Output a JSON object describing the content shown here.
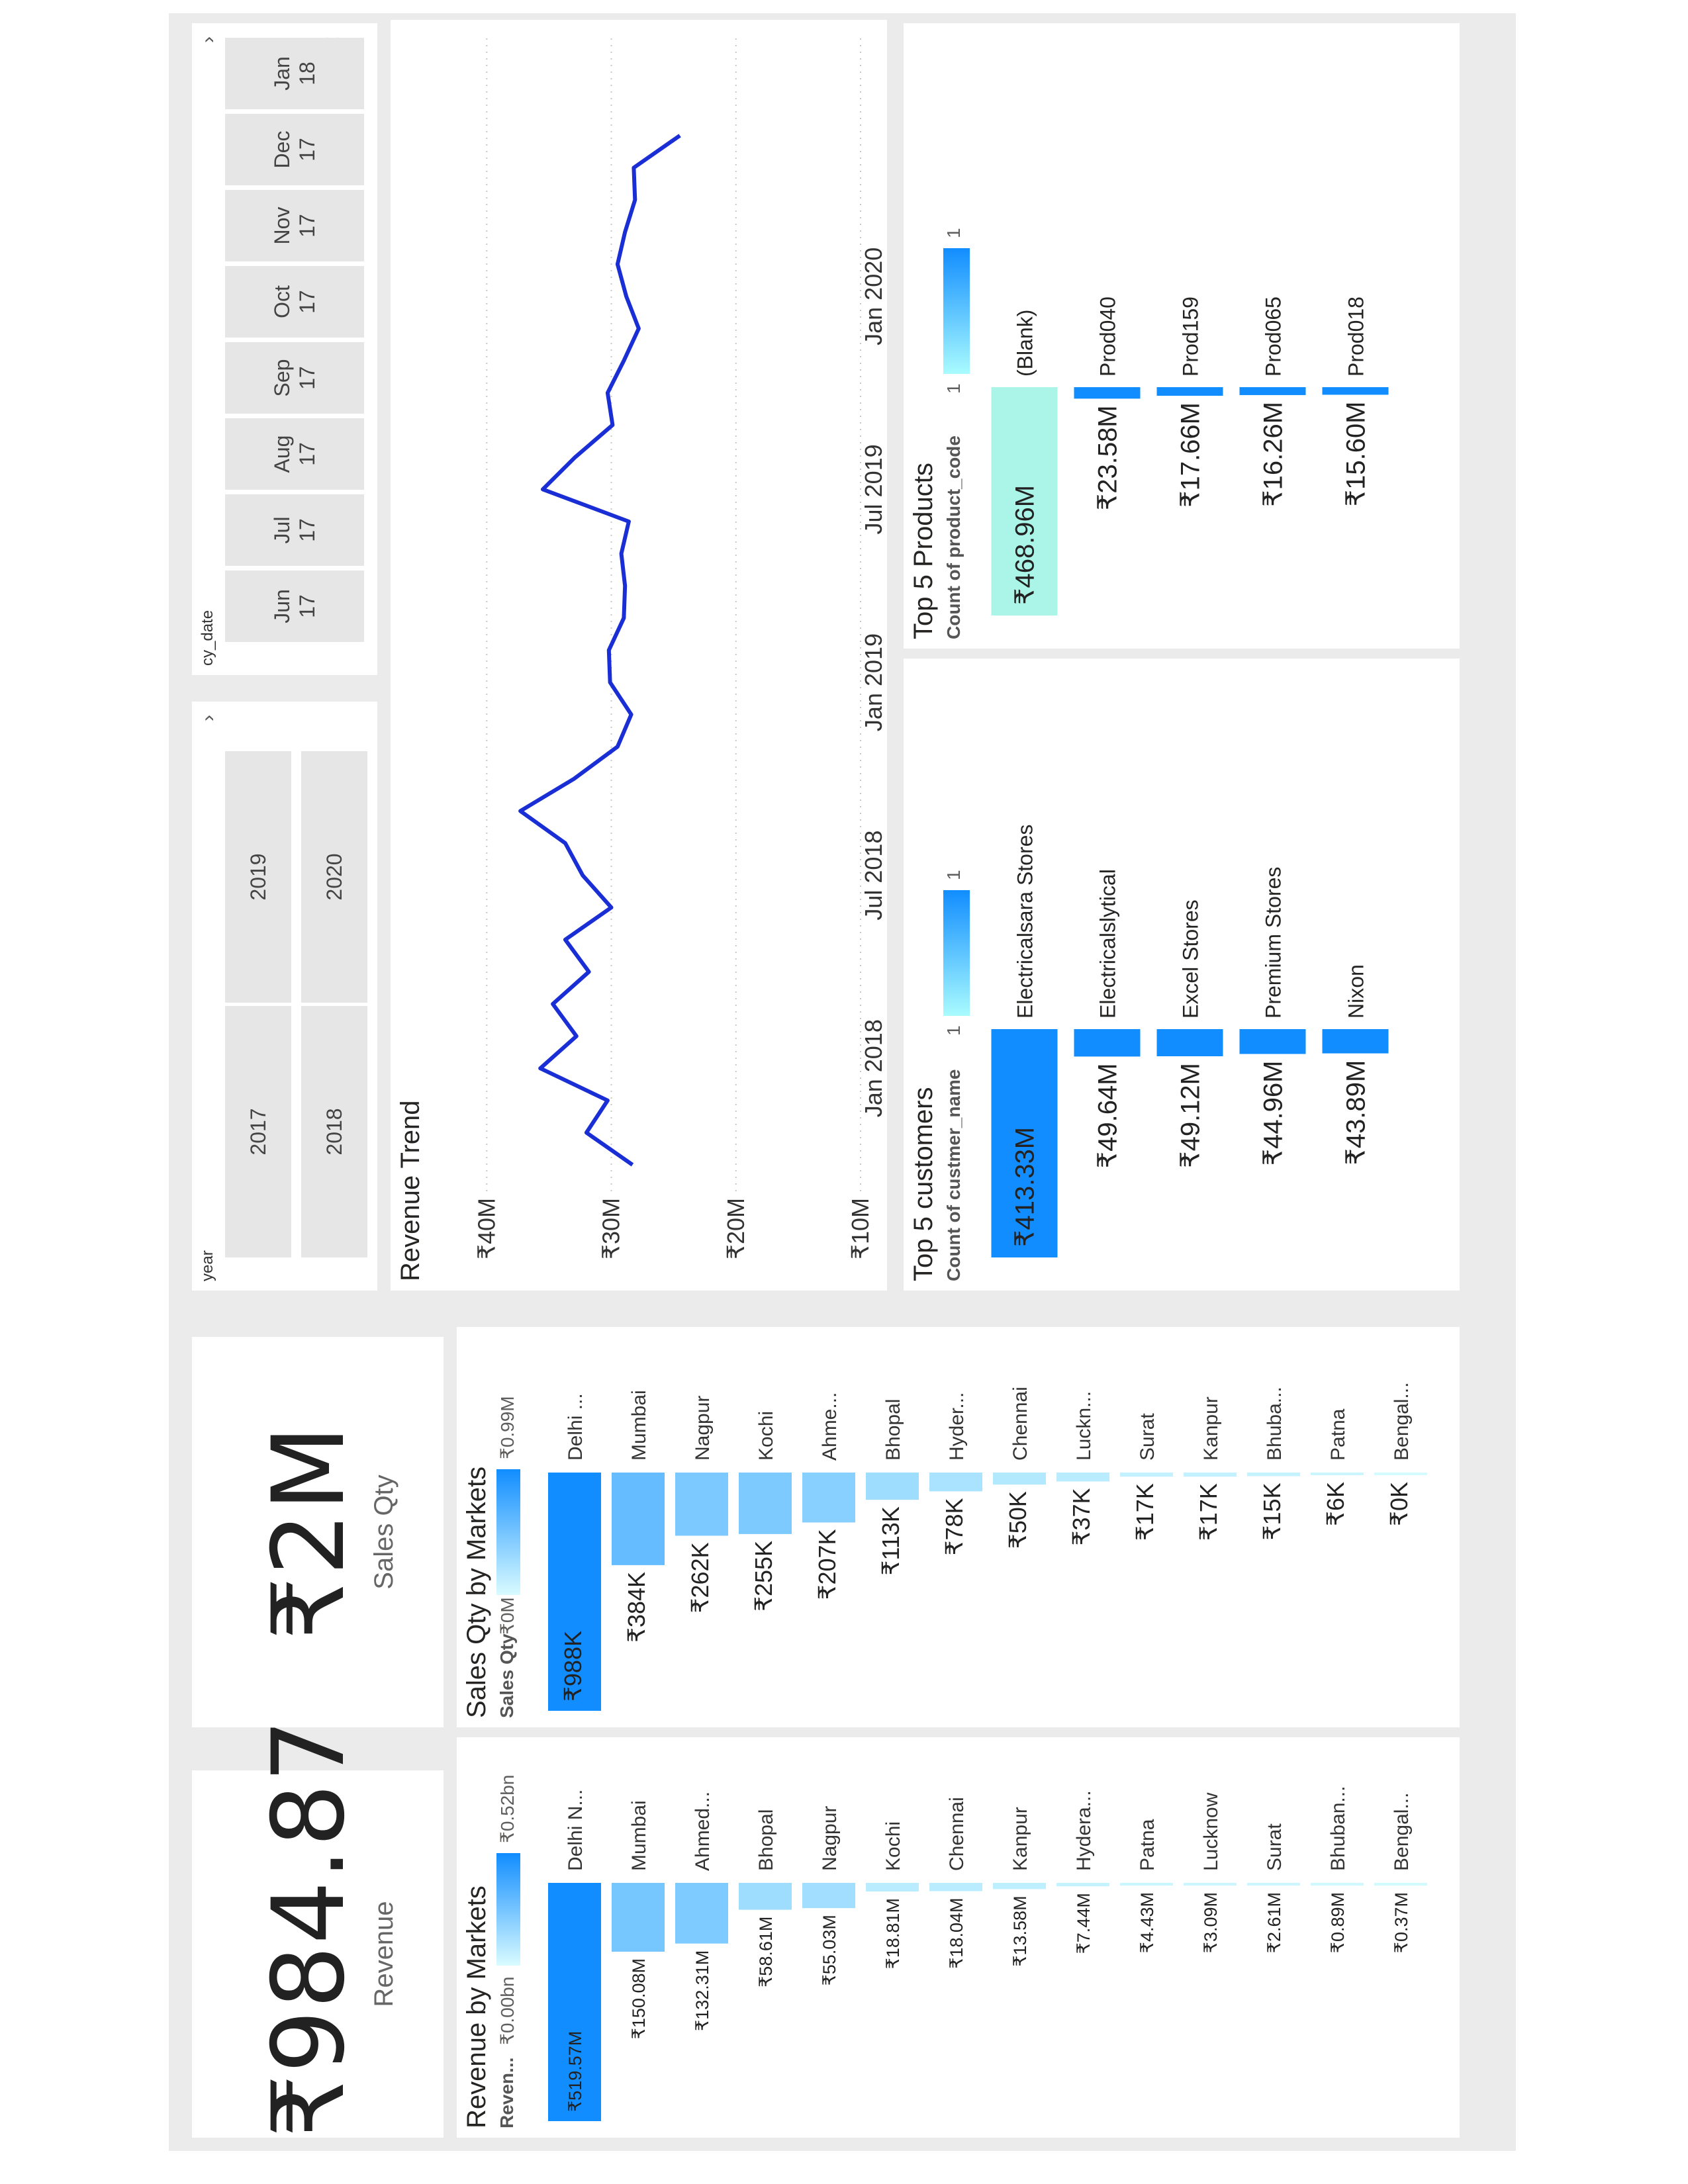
{
  "kpi_revenue": {
    "value": "₹984.87M",
    "label": "Revenue"
  },
  "kpi_sales_qty": {
    "value": "₹2M",
    "label": "Sales Qty"
  },
  "year_slicer": {
    "title": "year",
    "options": [
      "2017",
      "2019",
      "2018",
      "2020"
    ]
  },
  "date_slicer": {
    "title": "cy_date",
    "options": [
      "Jun\n17",
      "Jul\n17",
      "Aug\n17",
      "Sep\n17",
      "Oct\n17",
      "Nov\n17",
      "Dec\n17",
      "Jan\n18"
    ]
  },
  "colors": {
    "accent": "#118dff",
    "light": "#a9f1ff",
    "line": "#1a2ed6",
    "blank_bar": "#aaf5e8",
    "canvas": "#ebebeb"
  },
  "chart_data": [
    {
      "id": "revenue_by_markets",
      "type": "bar",
      "title": "Revenue by Markets",
      "legend_label": "Reven...",
      "legend_min": "₹0.00bn",
      "legend_max": "₹0.52bn",
      "categories": [
        "Delhi N...",
        "Mumbai",
        "Ahmed...",
        "Bhopal",
        "Nagpur",
        "Kochi",
        "Chennai",
        "Kanpur",
        "Hydera...",
        "Patna",
        "Lucknow",
        "Surat",
        "Bhuban...",
        "Bengal..."
      ],
      "values": [
        519.57,
        150.08,
        132.31,
        58.61,
        55.03,
        18.81,
        18.04,
        13.58,
        7.44,
        4.43,
        3.09,
        2.61,
        0.89,
        0.37
      ],
      "data_labels": [
        "₹519.57M",
        "₹150.08M",
        "₹132.31M",
        "₹58.61M",
        "₹55.03M",
        "₹18.81M",
        "₹18.04M",
        "₹13.58M",
        "₹7.44M",
        "₹4.43M",
        "₹3.09M",
        "₹2.61M",
        "₹0.89M",
        "₹0.37M"
      ],
      "ylim": [
        0,
        519.57
      ]
    },
    {
      "id": "sales_qty_by_markets",
      "type": "bar",
      "title": "Sales Qty by Markets",
      "legend_label": "Sales Qty",
      "legend_min": "₹0M",
      "legend_max": "₹0.99M",
      "categories": [
        "Delhi ...",
        "Mumbai",
        "Nagpur",
        "Kochi",
        "Ahme...",
        "Bhopal",
        "Hyder...",
        "Chennai",
        "Luckn...",
        "Surat",
        "Kanpur",
        "Bhuba...",
        "Patna",
        "Bengal..."
      ],
      "values": [
        988,
        384,
        262,
        255,
        207,
        113,
        78,
        50,
        37,
        17,
        17,
        15,
        6,
        0
      ],
      "data_labels": [
        "₹988K",
        "₹384K",
        "₹262K",
        "₹255K",
        "₹207K",
        "₹113K",
        "₹78K",
        "₹50K",
        "₹37K",
        "₹17K",
        "₹17K",
        "₹15K",
        "₹6K",
        "₹0K"
      ],
      "ylim": [
        0,
        988
      ]
    },
    {
      "id": "revenue_trend",
      "type": "line",
      "title": "Revenue Trend",
      "x_ticks": [
        "Jan 2018",
        "Jul 2018",
        "Jan 2019",
        "Jul 2019",
        "Jan 2020"
      ],
      "y_ticks": [
        "₹10M",
        "₹20M",
        "₹30M",
        "₹40M"
      ],
      "y_tick_values": [
        10,
        20,
        30,
        40
      ],
      "x_start": "2017-10",
      "x": [
        "2017-10",
        "2017-11",
        "2017-12",
        "2018-01",
        "2018-02",
        "2018-03",
        "2018-04",
        "2018-05",
        "2018-06",
        "2018-07",
        "2018-08",
        "2018-09",
        "2018-10",
        "2018-11",
        "2018-12",
        "2019-01",
        "2019-02",
        "2019-03",
        "2019-04",
        "2019-05",
        "2019-06",
        "2019-07",
        "2019-08",
        "2019-09",
        "2019-10",
        "2019-11",
        "2019-12",
        "2020-01",
        "2020-02",
        "2020-03",
        "2020-04",
        "2020-05",
        "2020-06"
      ],
      "values": [
        28.3,
        32.0,
        30.3,
        35.7,
        32.8,
        34.7,
        31.8,
        33.7,
        30.0,
        32.3,
        33.7,
        37.3,
        33.0,
        29.5,
        28.4,
        30.1,
        30.2,
        29.0,
        28.9,
        29.2,
        28.6,
        35.5,
        32.9,
        29.9,
        30.3,
        29.0,
        27.8,
        28.8,
        29.5,
        28.9,
        28.1,
        28.2,
        24.5
      ],
      "ylim": [
        10,
        44
      ]
    },
    {
      "id": "top5_customers",
      "type": "bar",
      "title": "Top 5 customers",
      "legend_label": "Count of custmer_name",
      "legend_min": "1",
      "legend_max": "1",
      "categories": [
        "Electricalsara Stores",
        "Electricalslytical",
        "Excel Stores",
        "Premium Stores",
        "Nixon"
      ],
      "values": [
        413.33,
        49.64,
        49.12,
        44.96,
        43.89
      ],
      "data_labels": [
        "₹413.33M",
        "₹49.64M",
        "₹49.12M",
        "₹44.96M",
        "₹43.89M"
      ],
      "ylim": [
        0,
        413.33
      ]
    },
    {
      "id": "top5_products",
      "type": "bar",
      "title": "Top 5 Products",
      "legend_label": "Count of product_code",
      "legend_min": "1",
      "legend_max": "1",
      "categories": [
        "(Blank)",
        "Prod040",
        "Prod159",
        "Prod065",
        "Prod018"
      ],
      "values": [
        468.96,
        23.58,
        17.66,
        16.26,
        15.6
      ],
      "data_labels": [
        "₹468.96M",
        "₹23.58M",
        "₹17.66M",
        "₹16.26M",
        "₹15.60M"
      ],
      "ylim": [
        0,
        468.96
      ]
    }
  ]
}
